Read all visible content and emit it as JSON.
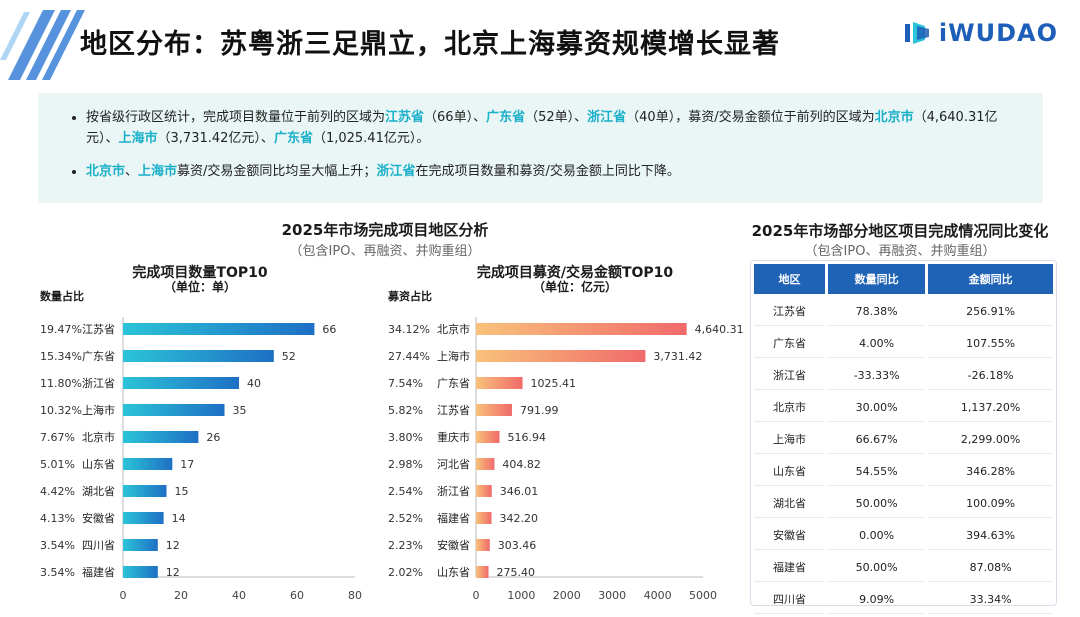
{
  "title": "地区分布：苏粤浙三足鼎立，北京上海募资规模增长显著",
  "logo": {
    "text": "iWUDAO",
    "icon": "iwudao-logo-icon"
  },
  "summary": {
    "b1": {
      "p1": "按省级行政区统计，完成项目数量位于前列的区域为",
      "h1": "江苏省",
      "p2": "（66单）、",
      "h2": "广东省",
      "p3": "（52单）、",
      "h3": "浙江省",
      "p4": "（40单），募资/交易金额位于前列的区域为",
      "h4": "北京市",
      "p5": "（4,640.31亿元）、",
      "h5": "上海市",
      "p6": "（3,731.42亿元）、",
      "h6": "广东省",
      "p7": "（1,025.41亿元）。"
    },
    "b2": {
      "h1": "北京市",
      "p1": "、",
      "h2": "上海市",
      "p2": "募资/交易金额同比均呈大幅上升；",
      "h3": "浙江省",
      "p3": "在完成项目数量和募资/交易金额上同比下降。"
    }
  },
  "left_section": {
    "title": "2025年市场完成项目地区分析",
    "subtitle": "（包含IPO、再融资、并购重组）"
  },
  "right_section": {
    "title": "2025年市场部分地区项目完成情况同比变化",
    "subtitle": "（包含IPO、再融资、并购重组）"
  },
  "chart_data": [
    {
      "type": "bar",
      "orientation": "horizontal",
      "title": "完成项目数量TOP10",
      "unit": "（单位：单）",
      "share_label": "数量占比",
      "categories": [
        "江苏省",
        "广东省",
        "浙江省",
        "上海市",
        "北京市",
        "山东省",
        "湖北省",
        "安徽省",
        "四川省",
        "福建省"
      ],
      "shares": [
        "19.47%",
        "15.34%",
        "11.80%",
        "10.32%",
        "7.67%",
        "5.01%",
        "4.42%",
        "4.13%",
        "3.54%",
        "3.54%"
      ],
      "values": [
        66,
        52,
        40,
        35,
        26,
        17,
        15,
        14,
        12,
        12
      ],
      "value_labels": [
        "66",
        "52",
        "40",
        "35",
        "26",
        "17",
        "15",
        "14",
        "12",
        "12"
      ],
      "xlim": [
        0,
        80
      ],
      "ticks": [
        "0",
        "20",
        "40",
        "60",
        "80"
      ],
      "tick_values": [
        0,
        20,
        40,
        60,
        80
      ],
      "color_from": "#2bc4d8",
      "color_to": "#1e6fc4"
    },
    {
      "type": "bar",
      "orientation": "horizontal",
      "title": "完成项目募资/交易金额TOP10",
      "unit": "（单位：亿元）",
      "share_label": "募资占比",
      "categories": [
        "北京市",
        "上海市",
        "广东省",
        "江苏省",
        "重庆市",
        "河北省",
        "浙江省",
        "福建省",
        "安徽省",
        "山东省"
      ],
      "shares": [
        "34.12%",
        "27.44%",
        "7.54%",
        "5.82%",
        "3.80%",
        "2.98%",
        "2.54%",
        "2.52%",
        "2.23%",
        "2.02%"
      ],
      "values": [
        4640.31,
        3731.42,
        1025.41,
        791.99,
        516.94,
        404.82,
        346.01,
        342.2,
        303.46,
        275.4
      ],
      "value_labels": [
        "4,640.31",
        "3,731.42",
        "1025.41",
        "791.99",
        "516.94",
        "404.82",
        "346.01",
        "342.20",
        "303.46",
        "275.40"
      ],
      "xlim": [
        0,
        5000
      ],
      "ticks": [
        "0",
        "1000",
        "2000",
        "3000",
        "4000",
        "5000"
      ],
      "tick_values": [
        0,
        1000,
        2000,
        3000,
        4000,
        5000
      ],
      "color_from": "#f8c27a",
      "color_to": "#f06a6a"
    }
  ],
  "table": {
    "headers": [
      "地区",
      "数量同比",
      "金额同比"
    ],
    "rows": [
      [
        "江苏省",
        "78.38%",
        "256.91%"
      ],
      [
        "广东省",
        "4.00%",
        "107.55%"
      ],
      [
        "浙江省",
        "-33.33%",
        "-26.18%"
      ],
      [
        "北京市",
        "30.00%",
        "1,137.20%"
      ],
      [
        "上海市",
        "66.67%",
        "2,299.00%"
      ],
      [
        "山东省",
        "54.55%",
        "346.28%"
      ],
      [
        "湖北省",
        "50.00%",
        "100.09%"
      ],
      [
        "安徽省",
        "0.00%",
        "394.63%"
      ],
      [
        "福建省",
        "50.00%",
        "87.08%"
      ],
      [
        "四川省",
        "9.09%",
        "33.34%"
      ]
    ]
  }
}
